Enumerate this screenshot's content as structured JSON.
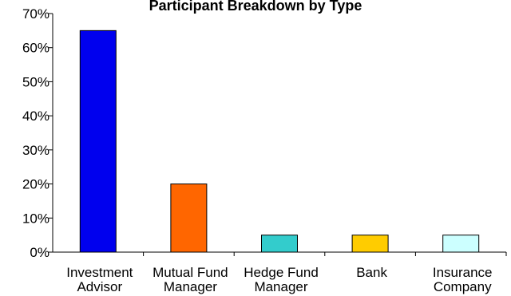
{
  "chart_data": {
    "type": "bar",
    "title": "Participant Breakdown by Type",
    "xlabel": "",
    "ylabel": "",
    "categories": [
      [
        "Investment",
        "Advisor"
      ],
      [
        "Mutual Fund",
        "Manager"
      ],
      [
        "Hedge Fund",
        "Manager"
      ],
      [
        "Bank"
      ],
      [
        "Insurance",
        "Company"
      ]
    ],
    "values": [
      65,
      20,
      5,
      5,
      5
    ],
    "colors": [
      "#0000ee",
      "#ff6600",
      "#33cccc",
      "#ffcc00",
      "#ccffff"
    ],
    "ylim": [
      0,
      70
    ],
    "yticks": [
      0,
      10,
      20,
      30,
      40,
      50,
      60,
      70
    ],
    "ytick_labels": [
      "0%",
      "10%",
      "20%",
      "30%",
      "40%",
      "50%",
      "60%",
      "70%"
    ],
    "grid": false,
    "legend": "none"
  }
}
